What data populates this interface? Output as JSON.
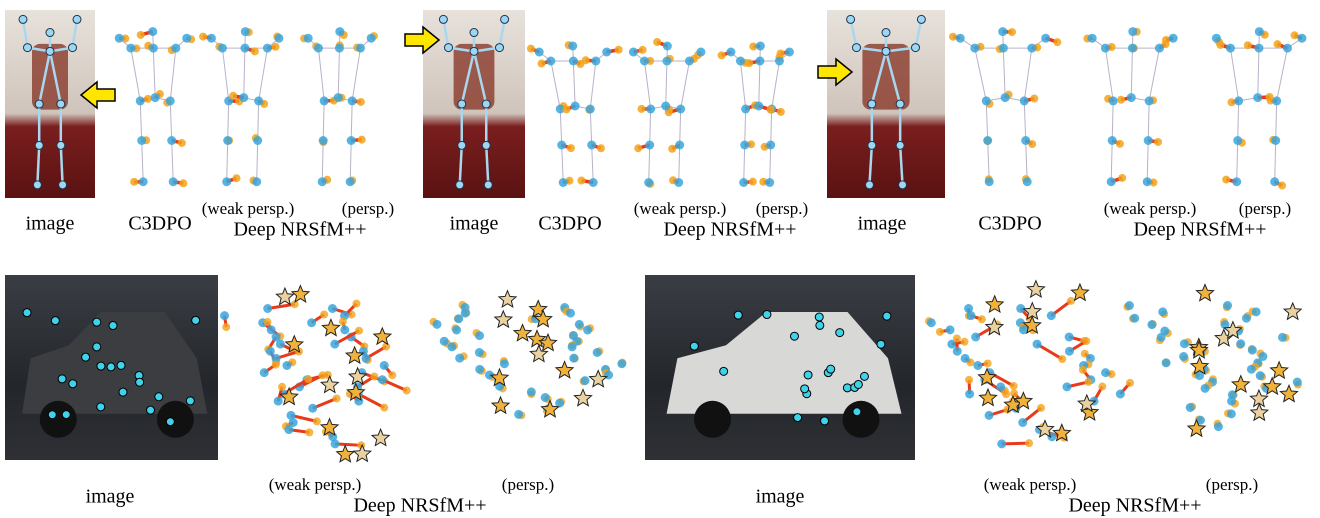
{
  "top_row": [
    {
      "image_label": "image",
      "c3dpo_label": "C3DPO",
      "weak_label": "(weak persp.)",
      "persp_label": "(persp.)",
      "method_label": "Deep NRSfM++"
    },
    {
      "image_label": "image",
      "c3dpo_label": "C3DPO",
      "weak_label": "(weak persp.)",
      "persp_label": "(persp.)",
      "method_label": "Deep NRSfM++"
    },
    {
      "image_label": "image",
      "c3dpo_label": "C3DPO",
      "weak_label": "(weak persp.)",
      "persp_label": "(persp.)",
      "method_label": "Deep NRSfM++"
    }
  ],
  "bottom_row": [
    {
      "image_label": "image",
      "weak_label": "(weak persp.)",
      "persp_label": "(persp.)",
      "method_label": "Deep NRSfM++"
    },
    {
      "image_label": "image",
      "weak_label": "(weak persp.)",
      "persp_label": "(persp.)",
      "method_label": "Deep NRSfM++"
    }
  ]
}
